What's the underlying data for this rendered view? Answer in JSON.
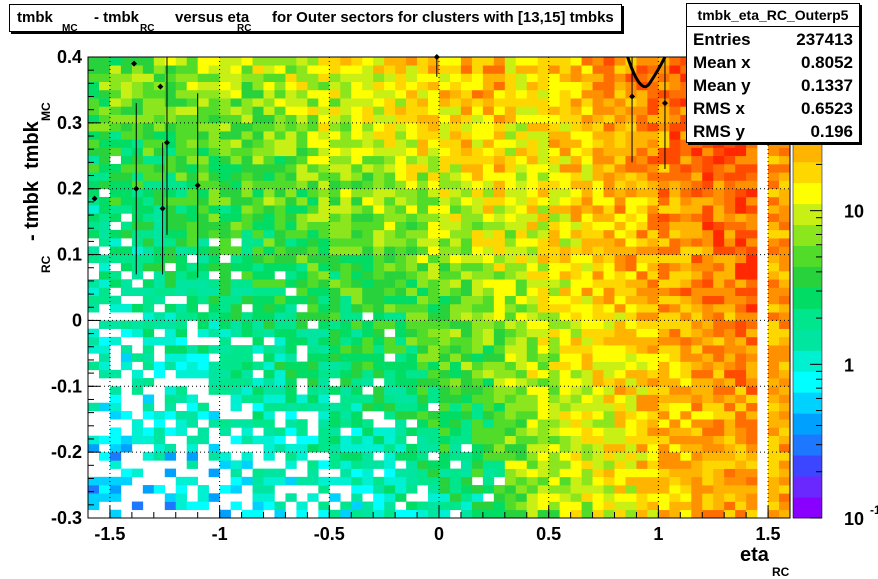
{
  "title": {
    "parts": [
      "tmbk",
      "MC",
      "- tmbk",
      "RC",
      "versus eta",
      "RC",
      "for Outer sectors for clusters with [13,15] tmbks"
    ]
  },
  "stats": {
    "name": "tmbk_eta_RC_Outerp5",
    "rows": [
      {
        "key": "Entries",
        "value": "237413"
      },
      {
        "key": "Mean x",
        "value": "0.8052"
      },
      {
        "key": "Mean y",
        "value": "0.1337"
      },
      {
        "key": "RMS x",
        "value": "0.6523"
      },
      {
        "key": "RMS y",
        "value": "0.196"
      }
    ]
  },
  "axes": {
    "xlabel_main": "eta",
    "xlabel_sub": "RC",
    "ylabel_main": "tmbk",
    "ylabel_sub1": "MC",
    "ylabel_mid": "- tmbk",
    "ylabel_sub2": "RC"
  },
  "colors": {
    "high": "#ff2200",
    "mid": "#ffff00",
    "low": "#00e58c",
    "lowest": "#00ffff"
  },
  "chart_data": {
    "type": "heatmap",
    "xlim": [
      -1.6,
      1.6
    ],
    "ylim": [
      -0.3,
      0.4
    ],
    "zscale": "log",
    "zlim": [
      0.1,
      100
    ],
    "grid": true,
    "x_ticks": [
      -1.5,
      -1,
      -0.5,
      0,
      0.5,
      1,
      1.5
    ],
    "x_tick_labels": [
      "-1.5",
      "-1",
      "-0.5",
      "0",
      "0.5",
      "1",
      "1.5"
    ],
    "y_ticks": [
      -0.3,
      -0.2,
      -0.1,
      0,
      0.1,
      0.2,
      0.3,
      0.4
    ],
    "y_tick_labels": [
      "-0.3",
      "-0.2",
      "-0.1",
      "0",
      "0.1",
      "0.2",
      "0.3",
      "0.4"
    ],
    "z_tick_labels": [
      "10",
      "1",
      "10"
    ],
    "z_tick_exponent": "-1",
    "nx": 64,
    "ny": 56,
    "profile_points": [
      {
        "x": -1.57,
        "y": 0.185,
        "err": 0.0
      },
      {
        "x": -1.39,
        "y": 0.39,
        "err": 0.0
      },
      {
        "x": -1.38,
        "y": 0.2,
        "err": 0.13
      },
      {
        "x": -1.27,
        "y": 0.355,
        "err": 0.0
      },
      {
        "x": -1.26,
        "y": 0.17,
        "err": 0.1
      },
      {
        "x": -1.24,
        "y": 0.27,
        "err": 0.14
      },
      {
        "x": -1.1,
        "y": 0.205,
        "err": 0.14
      },
      {
        "x": 0.88,
        "y": 0.34,
        "err": 0.1
      },
      {
        "x": 1.03,
        "y": 0.33,
        "err": 0.1
      },
      {
        "x": -0.01,
        "y": 0.4,
        "err": 0.03
      }
    ],
    "description_bands": [
      {
        "x_from": -1.6,
        "x_to": -0.4,
        "level": 2
      },
      {
        "x_from": -0.4,
        "x_to": 0.4,
        "level": 6
      },
      {
        "x_from": 0.4,
        "x_to": 1.0,
        "level": 14
      },
      {
        "x_from": 1.0,
        "x_to": 1.6,
        "level": 40
      }
    ]
  }
}
